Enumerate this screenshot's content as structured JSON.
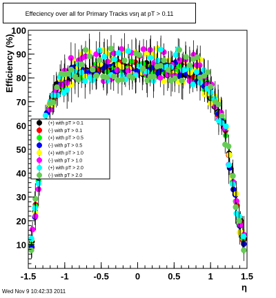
{
  "title": "Effeciency over all for Primary Tracks vsη at pT > 0.11",
  "footer": "Wed Nov  9 10:42:33 2011",
  "chart_data": {
    "type": "scatter",
    "title": "Effeciency over all for Primary Tracks vsη at pT > 0.11",
    "xlabel": "η",
    "ylabel": "Efficiency (%)",
    "xlim": [
      -1.5,
      1.5
    ],
    "ylim": [
      0,
      100
    ],
    "x_ticks": [
      -1.5,
      -1,
      -0.5,
      0,
      0.5,
      1,
      1.5
    ],
    "x_tick_labels": [
      "-1.5",
      "-1",
      "-0.5",
      "0",
      "0.5",
      "1",
      "1.5"
    ],
    "y_ticks": [
      10,
      20,
      30,
      40,
      50,
      60,
      70,
      80,
      90,
      100
    ],
    "y_tick_labels": [
      "10",
      "20",
      "30",
      "40",
      "50",
      "60",
      "70",
      "80",
      "90",
      "100"
    ],
    "grid": false,
    "legend_position": "left-middle",
    "series": [
      {
        "name": "(+) with pT > 0.1",
        "color": "#000000"
      },
      {
        "name": "(-) with pT > 0.1",
        "color": "#ff0000"
      },
      {
        "name": "(+) with pT > 0.5",
        "color": "#00ff00"
      },
      {
        "name": "(-) with pT > 0.5",
        "color": "#0000ff"
      },
      {
        "name": "(+) with pT > 1.0",
        "color": "#ffff00"
      },
      {
        "name": "(-) with pT > 1.0",
        "color": "#ff00ff"
      },
      {
        "name": "(+) with pT > 2.0",
        "color": "#00ffff"
      },
      {
        "name": "(-) with pT > 2.0",
        "color": "#66cc55"
      }
    ],
    "shape": {
      "x": [
        -1.45,
        -1.42,
        -1.38,
        -1.33,
        -1.27,
        -1.2,
        -1.12,
        -1.0,
        -0.9,
        -0.7,
        -0.5,
        -0.3,
        -0.1,
        0.1,
        0.3,
        0.5,
        0.7,
        0.9,
        1.0,
        1.1,
        1.2,
        1.25,
        1.3,
        1.35,
        1.4,
        1.45,
        1.48
      ],
      "eff": [
        11,
        20,
        32,
        46,
        60,
        69,
        75,
        79,
        82,
        83.5,
        84,
        84,
        84,
        84,
        84,
        84,
        83,
        79,
        74,
        67,
        57,
        47,
        37,
        28,
        19,
        13,
        9
      ]
    }
  }
}
